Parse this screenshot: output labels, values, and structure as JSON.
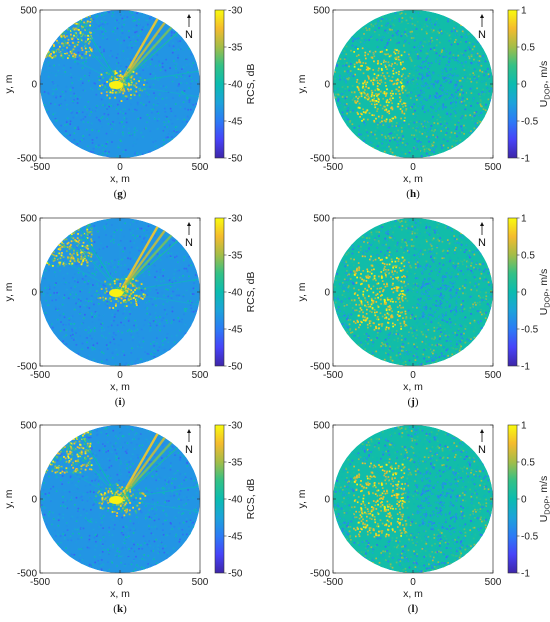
{
  "chart_data": [
    {
      "type": "heatmap",
      "panel": "(g)",
      "quantity": "rcs",
      "xlabel": "x, m",
      "ylabel": "y, m",
      "xlim": [
        -500,
        500
      ],
      "ylim": [
        -500,
        500
      ],
      "xticks": [
        "-500",
        "0",
        "500"
      ],
      "yticks": [
        "500",
        "0",
        "-500"
      ],
      "colorbar": {
        "label": "RCS, dB",
        "range": [
          -50,
          -30
        ],
        "ticks": [
          "-30",
          "-35",
          "-40",
          "-45",
          "-50"
        ]
      },
      "north_label": "N",
      "radius": 500
    },
    {
      "type": "heatmap",
      "panel": "(h)",
      "quantity": "doppler",
      "xlabel": "x, m",
      "ylabel": "y, m",
      "xlim": [
        -500,
        500
      ],
      "ylim": [
        -500,
        500
      ],
      "xticks": [
        "-500",
        "0",
        "500"
      ],
      "yticks": [
        "500",
        "0",
        "-500"
      ],
      "colorbar": {
        "label": "U",
        "label_sub": "DOP",
        "label_unit": ", m/s",
        "range": [
          -1,
          1
        ],
        "ticks": [
          "1",
          "0.5",
          "0",
          "-0.5",
          "-1"
        ]
      },
      "north_label": "N",
      "radius": 500
    },
    {
      "type": "heatmap",
      "panel": "(i)",
      "quantity": "rcs",
      "xlabel": "x, m",
      "ylabel": "y, m",
      "xlim": [
        -500,
        500
      ],
      "ylim": [
        -500,
        500
      ],
      "xticks": [
        "-500",
        "0",
        "500"
      ],
      "yticks": [
        "500",
        "0",
        "-500"
      ],
      "colorbar": {
        "label": "RCS, dB",
        "range": [
          -50,
          -30
        ],
        "ticks": [
          "-30",
          "-35",
          "-40",
          "-45",
          "-50"
        ]
      },
      "north_label": "N",
      "radius": 500
    },
    {
      "type": "heatmap",
      "panel": "(j)",
      "quantity": "doppler",
      "xlabel": "x, m",
      "ylabel": "y, m",
      "xlim": [
        -500,
        500
      ],
      "ylim": [
        -500,
        500
      ],
      "xticks": [
        "-500",
        "0",
        "500"
      ],
      "yticks": [
        "500",
        "0",
        "-500"
      ],
      "colorbar": {
        "label": "U",
        "label_sub": "DOP",
        "label_unit": ", m/s",
        "range": [
          -1,
          1
        ],
        "ticks": [
          "1",
          "0.5",
          "0",
          "-0.5",
          "-1"
        ]
      },
      "north_label": "N",
      "radius": 500
    },
    {
      "type": "heatmap",
      "panel": "(k)",
      "quantity": "rcs",
      "xlabel": "x, m",
      "ylabel": "y, m",
      "xlim": [
        -500,
        500
      ],
      "ylim": [
        -500,
        500
      ],
      "xticks": [
        "-500",
        "0",
        "500"
      ],
      "yticks": [
        "500",
        "0",
        "-500"
      ],
      "colorbar": {
        "label": "RCS, dB",
        "range": [
          -50,
          -30
        ],
        "ticks": [
          "-30",
          "-35",
          "-40",
          "-45",
          "-50"
        ]
      },
      "north_label": "N",
      "radius": 500
    },
    {
      "type": "heatmap",
      "panel": "(l)",
      "quantity": "doppler",
      "xlabel": "x, m",
      "ylabel": "y, m",
      "xlim": [
        -500,
        500
      ],
      "ylim": [
        -500,
        500
      ],
      "xticks": [
        "-500",
        "0",
        "500"
      ],
      "yticks": [
        "500",
        "0",
        "-500"
      ],
      "colorbar": {
        "label": "U",
        "label_sub": "DOP",
        "label_unit": ", m/s",
        "range": [
          -1,
          1
        ],
        "ticks": [
          "1",
          "0.5",
          "0",
          "-0.5",
          "-1"
        ]
      },
      "north_label": "N",
      "radius": 500
    }
  ],
  "colormap": [
    "#3e26a8",
    "#4743f8",
    "#2c7bf5",
    "#1ca3da",
    "#0bbcb0",
    "#33c186",
    "#a3bd48",
    "#f4bb2e",
    "#f9fb0e"
  ]
}
